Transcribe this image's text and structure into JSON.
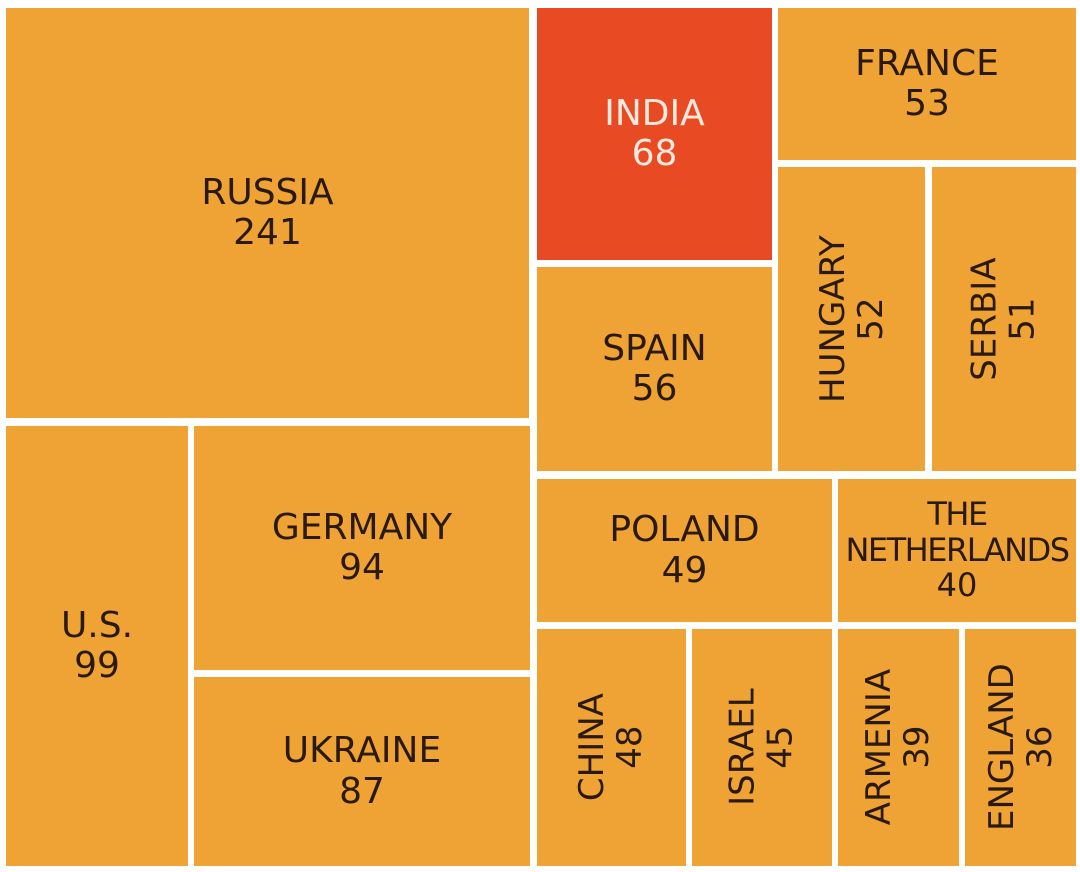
{
  "chart_data": {
    "type": "treemap",
    "colors": {
      "default": "#EFA335",
      "highlight": "#E84A23",
      "gap": "#FFFFFF"
    },
    "items": [
      {
        "name": "RUSSIA",
        "value": 241
      },
      {
        "name": "U.S.",
        "value": 99
      },
      {
        "name": "GERMANY",
        "value": 94
      },
      {
        "name": "UKRAINE",
        "value": 87
      },
      {
        "name": "INDIA",
        "value": 68,
        "highlight": true
      },
      {
        "name": "SPAIN",
        "value": 56
      },
      {
        "name": "FRANCE",
        "value": 53
      },
      {
        "name": "HUNGARY",
        "value": 52
      },
      {
        "name": "SERBIA",
        "value": 51
      },
      {
        "name": "POLAND",
        "value": 49
      },
      {
        "name": "CHINA",
        "value": 48
      },
      {
        "name": "ISRAEL",
        "value": 45
      },
      {
        "name": "THE NETHERLANDS",
        "value": 40
      },
      {
        "name": "ARMENIA",
        "value": 39
      },
      {
        "name": "ENGLAND",
        "value": 36
      }
    ]
  }
}
